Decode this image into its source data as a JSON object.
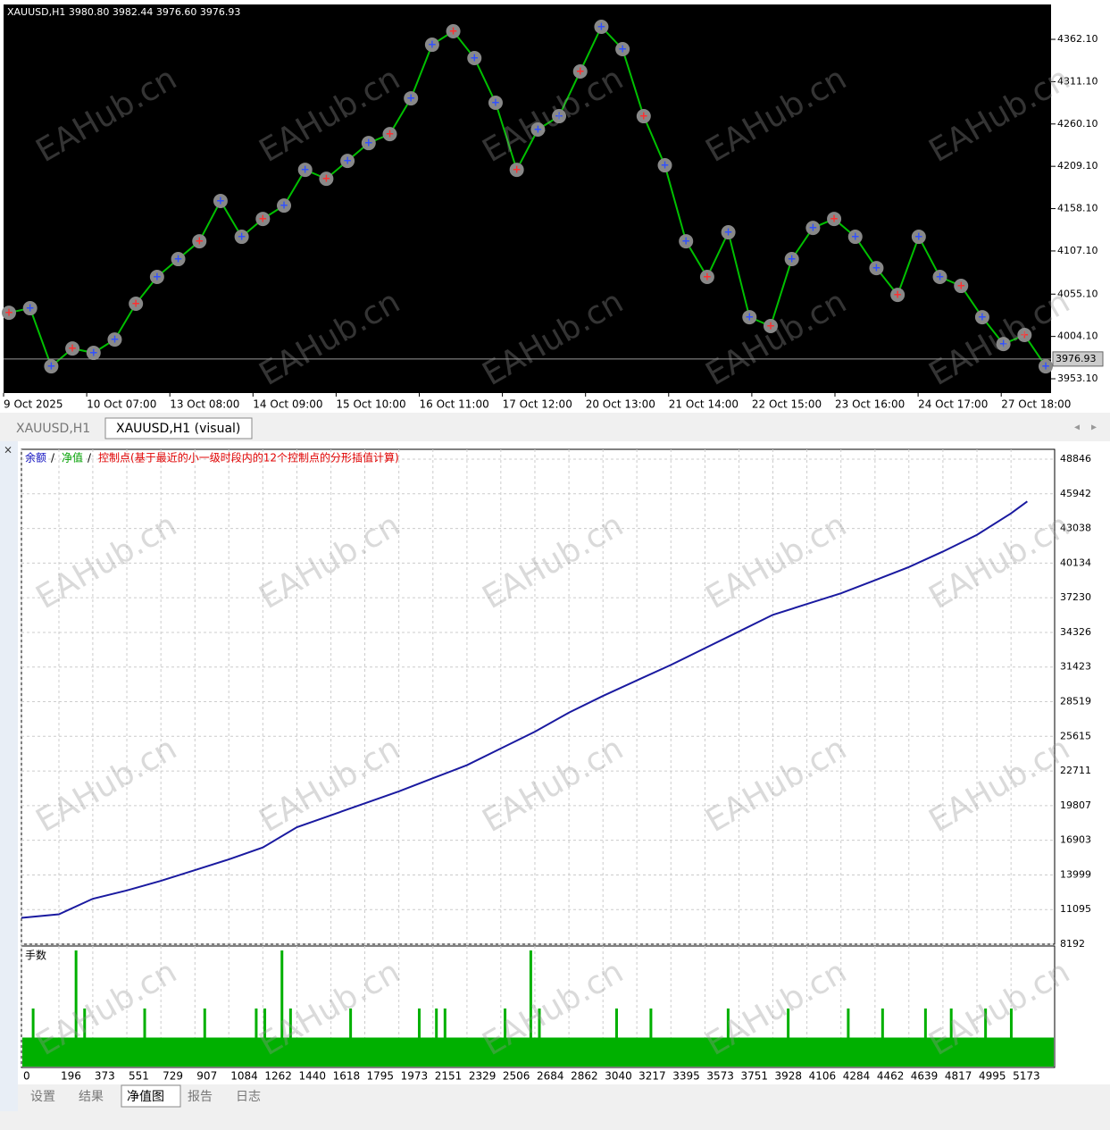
{
  "price_chart": {
    "type": "line",
    "header": "XAUUSD,H1   3980.80 3982.44 3976.60 3976.93",
    "values": [
      4032.7,
      4038.1,
      3968.1,
      3989.6,
      3984.3,
      4000.4,
      4043.5,
      4075.8,
      4097.3,
      4118.8,
      4167.3,
      4124.2,
      4145.7,
      4161.8,
      4204.9,
      4194.1,
      4215.6,
      4237.1,
      4247.9,
      4291.0,
      4355.6,
      4371.8,
      4339.5,
      4285.7,
      4204.9,
      4253.4,
      4269.5,
      4323.4,
      4377.2,
      4350.3,
      4269.5,
      4210.3,
      4118.8,
      4075.8,
      4129.6,
      4027.3,
      4016.6,
      4097.3,
      4134.9,
      4145.7,
      4124.2,
      4086.5,
      4054.2,
      4124.2,
      4075.8,
      4065.0,
      4027.3,
      3995.0,
      4005.8,
      3968.1
    ],
    "color": "#00c000",
    "ylim": [
      3935.9,
      4404.1
    ],
    "yticks": [
      {
        "value": 4362.1,
        "label": "4362.10"
      },
      {
        "value": 4311.1,
        "label": "4311.10"
      },
      {
        "value": 4260.1,
        "label": "4260.10"
      },
      {
        "value": 4209.1,
        "label": "4209.10"
      },
      {
        "value": 4158.1,
        "label": "4158.10"
      },
      {
        "value": 4107.1,
        "label": "4107.10"
      },
      {
        "value": 4055.1,
        "label": "4055.10"
      },
      {
        "value": 4004.1,
        "label": "4004.10"
      },
      {
        "value": 3953.1,
        "label": "3953.10"
      }
    ],
    "current_price": 3976.93,
    "categories": [
      "9 Oct 2025",
      "10 Oct 07:00",
      "13 Oct 08:00",
      "14 Oct 09:00",
      "15 Oct 10:00",
      "16 Oct 11:00",
      "17 Oct 12:00",
      "20 Oct 13:00",
      "21 Oct 14:00",
      "22 Oct 15:00",
      "23 Oct 16:00",
      "24 Oct 17:00",
      "27 Oct 18:00"
    ]
  },
  "tabs": [
    "XAUUSD,H1",
    "XAUUSD,H1 (visual)"
  ],
  "watermark": "EAHub.cn",
  "equity_chart": {
    "type": "line",
    "legend": [
      {
        "name": "余额",
        "color": "#1010c0"
      },
      {
        "name": "净值",
        "color": "#00a000"
      },
      {
        "name": "控制点(基于最近的小一级时段内的12个控制点的分形插值计算)",
        "color": "#e00000"
      }
    ],
    "separator": "/",
    "x": [
      0,
      196,
      373,
      551,
      729,
      907,
      1084,
      1262,
      1440,
      1618,
      1795,
      1973,
      2151,
      2329,
      2506,
      2684,
      2862,
      3040,
      3217,
      3395,
      3573,
      3751,
      3928,
      4106,
      4284,
      4462,
      4639,
      4817,
      4995,
      5173,
      5258
    ],
    "series": [
      {
        "name": "余额",
        "color": "#1a1aa0",
        "values": [
          10400,
          10700,
          12000,
          12700,
          13500,
          14400,
          15300,
          16300,
          18000,
          19000,
          20000,
          21000,
          22100,
          23200,
          24600,
          26000,
          27600,
          29000,
          30300,
          31600,
          33000,
          34400,
          35800,
          36700,
          37600,
          38700,
          39800,
          41100,
          42500,
          44300,
          45300
        ]
      }
    ],
    "ylim": [
      8192,
      49670
    ],
    "yticks": [
      48846,
      45942,
      43038,
      40134,
      37230,
      34326,
      31423,
      28519,
      25615,
      22711,
      19807,
      16903,
      13999,
      11095,
      8192
    ],
    "xlim": [
      0,
      5401
    ],
    "xticks": [
      0,
      196,
      373,
      551,
      729,
      907,
      1084,
      1262,
      1440,
      1618,
      1795,
      1973,
      2151,
      2329,
      2506,
      2684,
      2862,
      3040,
      3217,
      3395,
      3573,
      3751,
      3928,
      4106,
      4284,
      4462,
      4639,
      4817,
      4995,
      5173
    ],
    "grid": true
  },
  "lots_chart": {
    "type": "bar",
    "title": "手数",
    "color": "#00b000",
    "values": [
      1,
      2,
      1,
      1,
      1,
      1,
      4,
      2,
      1,
      1,
      1,
      1,
      1,
      1,
      2,
      1,
      1,
      1,
      1,
      1,
      1,
      2,
      1,
      1,
      1,
      1,
      1,
      2,
      2,
      1,
      4,
      2,
      1,
      1,
      1,
      1,
      1,
      1,
      2,
      1,
      1,
      1,
      1,
      1,
      1,
      1,
      2,
      1,
      2,
      2,
      1,
      1,
      1,
      1,
      1,
      1,
      2,
      1,
      1,
      4,
      2,
      1,
      1,
      1,
      1,
      1,
      1,
      1,
      1,
      2,
      1,
      1,
      1,
      2,
      1,
      1,
      1,
      1,
      1,
      1,
      1,
      1,
      2,
      1,
      1,
      1,
      1,
      1,
      1,
      2,
      1,
      1,
      1,
      1,
      1,
      1,
      2,
      1,
      1,
      1,
      2,
      1,
      1,
      1,
      1,
      2,
      1,
      1,
      2,
      1,
      1,
      1,
      2,
      1,
      1,
      2,
      1,
      1,
      1,
      1
    ]
  },
  "bottom_tabs": [
    "设置",
    "结果",
    "净值图",
    "报告",
    "日志"
  ],
  "active_bottom_tab": 2
}
